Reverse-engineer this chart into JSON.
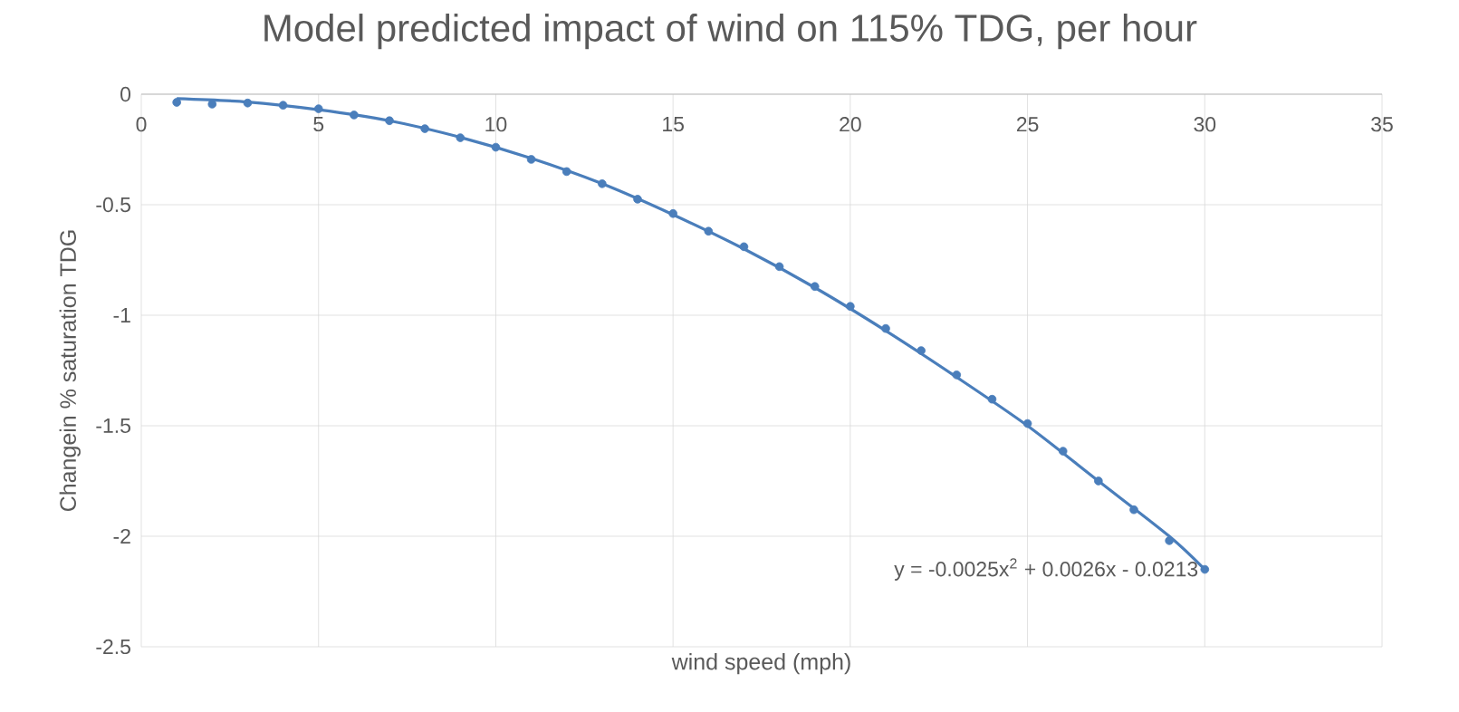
{
  "chart_data": {
    "type": "scatter",
    "title": "Model predicted impact of wind on 115% TDG, per hour",
    "xlabel": "wind speed (mph)",
    "ylabel": "Changein % saturation TDG",
    "xlim": [
      0,
      35
    ],
    "xticks": [
      0,
      5,
      10,
      15,
      20,
      25,
      30,
      35
    ],
    "ylim": [
      -2.5,
      0
    ],
    "yticks": [
      -2.5,
      -2,
      -1.5,
      -1,
      -0.5,
      0
    ],
    "grid": true,
    "series": [
      {
        "marker": "circle",
        "color": "#4a7ebb",
        "x": [
          1,
          2,
          3,
          4,
          5,
          6,
          7,
          8,
          9,
          10,
          11,
          12,
          13,
          14,
          15,
          16,
          17,
          18,
          19,
          20,
          21,
          22,
          23,
          24,
          25,
          26,
          27,
          28,
          29,
          30
        ],
        "values": [
          -0.037,
          -0.045,
          -0.04,
          -0.05,
          -0.066,
          -0.094,
          -0.12,
          -0.156,
          -0.197,
          -0.24,
          -0.295,
          -0.35,
          -0.405,
          -0.475,
          -0.54,
          -0.62,
          -0.69,
          -0.78,
          -0.87,
          -0.96,
          -1.06,
          -1.16,
          -1.27,
          -1.38,
          -1.49,
          -1.615,
          -1.75,
          -1.88,
          -2.02,
          -2.15
        ]
      },
      {
        "type": "line",
        "marker": "none",
        "color": "#4a7ebb",
        "x": [
          1,
          3,
          5,
          7,
          9,
          11,
          13,
          15,
          17,
          19,
          21,
          23,
          25,
          27,
          29,
          30
        ],
        "values": [
          -0.02,
          -0.035,
          -0.07,
          -0.12,
          -0.195,
          -0.29,
          -0.405,
          -0.545,
          -0.7,
          -0.875,
          -1.07,
          -1.28,
          -1.5,
          -1.75,
          -2.0,
          -2.15
        ]
      }
    ],
    "annotations": [
      {
        "text": "y = -0.0025x$^{2}$ + 0.0026x - 0.0213",
        "x": 30,
        "y": -2.15
      }
    ]
  }
}
